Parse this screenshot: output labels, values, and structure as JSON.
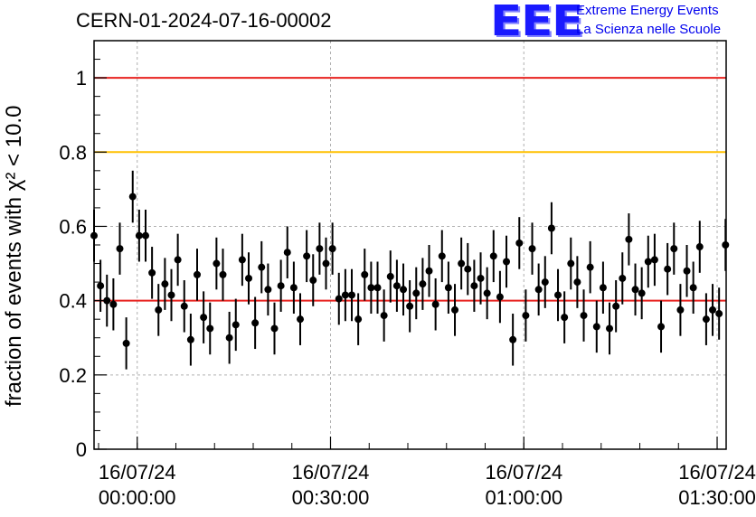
{
  "header": {
    "title": "CERN-01-2024-07-16-00002",
    "logo_letters": "EEE",
    "logo_line1": "Extreme Energy Events",
    "logo_line2": "La Scienza nelle Scuole"
  },
  "colors": {
    "threshold_red": "#e8221f",
    "threshold_yellow": "#ffc000",
    "points": "#000000",
    "grid": "#b0b0b0",
    "logo_blue": "#1a1aff"
  },
  "chart_data": {
    "type": "scatter",
    "title": "CERN-01-2024-07-16-00002",
    "ylabel": "fraction of events with χ² < 10.0",
    "ylim": [
      0,
      1.1
    ],
    "yticks": [
      0,
      0.2,
      0.4,
      0.6,
      0.8,
      1
    ],
    "ytick_labels": [
      "0",
      "0.2",
      "0.4",
      "0.6",
      "0.8",
      "1"
    ],
    "xticks_min": [
      -3.3,
      26.7,
      56.7,
      86.7
    ],
    "xtick_labels": [
      [
        "16/07/24",
        "00:00:00"
      ],
      [
        "16/07/24",
        "00:30:00"
      ],
      [
        "16/07/24",
        "01:00:00"
      ],
      [
        "16/07/24",
        "01:30:00"
      ]
    ],
    "xlim_min": [
      -10,
      88.1
    ],
    "grid": true,
    "reference_lines": [
      {
        "y": 1.0,
        "color": "red"
      },
      {
        "y": 0.8,
        "color": "orange"
      },
      {
        "y": 0.4,
        "color": "red"
      }
    ],
    "series": [
      {
        "marker": "circle",
        "error_bar": 0.07,
        "x_min": [
          -10,
          -9,
          -8,
          -7,
          -6,
          -5,
          -4,
          -3,
          -2,
          -1,
          0,
          1,
          2,
          3,
          4,
          5,
          6,
          7,
          8,
          9,
          10,
          11,
          12,
          13,
          14,
          15,
          16,
          17,
          18,
          19,
          20,
          21,
          22,
          23,
          24,
          25,
          26,
          27,
          28,
          29,
          30,
          31,
          32,
          33,
          34,
          35,
          36,
          37,
          38,
          39,
          40,
          41,
          42,
          43,
          44,
          45,
          46,
          47,
          48,
          49,
          50,
          51,
          52,
          53,
          54,
          55,
          56,
          57,
          58,
          59,
          60,
          61,
          62,
          63,
          64,
          65,
          66,
          67,
          68,
          69,
          70,
          71,
          72,
          73,
          74,
          75,
          76,
          77,
          78,
          79,
          80,
          81,
          82,
          83,
          84,
          85,
          86,
          87,
          88
        ],
        "y": [
          0.575,
          0.44,
          0.4,
          0.39,
          0.54,
          0.285,
          0.68,
          0.575,
          0.575,
          0.475,
          0.375,
          0.445,
          0.415,
          0.51,
          0.385,
          0.295,
          0.47,
          0.355,
          0.325,
          0.5,
          0.47,
          0.3,
          0.335,
          0.51,
          0.46,
          0.34,
          0.49,
          0.43,
          0.325,
          0.44,
          0.53,
          0.435,
          0.35,
          0.52,
          0.455,
          0.54,
          0.5,
          0.54,
          0.405,
          0.415,
          0.415,
          0.35,
          0.47,
          0.435,
          0.435,
          0.36,
          0.465,
          0.44,
          0.43,
          0.385,
          0.42,
          0.445,
          0.48,
          0.39,
          0.52,
          0.435,
          0.375,
          0.5,
          0.485,
          0.44,
          0.46,
          0.42,
          0.52,
          0.41,
          0.505,
          0.295,
          0.555,
          0.36,
          0.54,
          0.43,
          0.45,
          0.595,
          0.415,
          0.355,
          0.5,
          0.45,
          0.36,
          0.49,
          0.33,
          0.435,
          0.325,
          0.385,
          0.46,
          0.565,
          0.43,
          0.42,
          0.505,
          0.51,
          0.33,
          0.485,
          0.54,
          0.375,
          0.48,
          0.435,
          0.545,
          0.35,
          0.375,
          0.365,
          0.55
        ]
      }
    ]
  }
}
